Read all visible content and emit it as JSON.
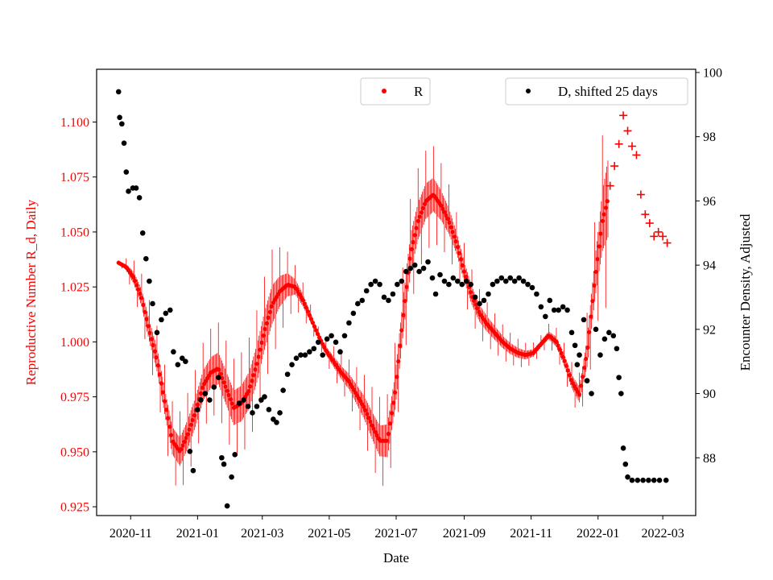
{
  "chart_data": {
    "type": "scatter",
    "xlabel": "Date",
    "ylabel_left": "Reproductive Number R_d, Daily",
    "ylabel_right": "Encounter Density, Adjusted",
    "x_ticks": [
      "2020-11",
      "2021-01",
      "2021-03",
      "2021-05",
      "2021-07",
      "2021-09",
      "2021-11",
      "2022-01",
      "2022-03"
    ],
    "xlim": [
      "2020-10-01",
      "2022-03-31"
    ],
    "y_left_ticks": [
      "0.925",
      "0.950",
      "0.975",
      "1.000",
      "1.025",
      "1.050",
      "1.075",
      "1.100"
    ],
    "ylim_left": [
      0.921,
      1.124
    ],
    "y_right_ticks": [
      "88",
      "90",
      "92",
      "94",
      "96",
      "98",
      "100"
    ],
    "ylim_right": [
      86.2,
      100.1
    ],
    "legend": [
      {
        "label": "R",
        "color": "#ff0000",
        "position": "top-center"
      },
      {
        "label": "D, shifted 25 days",
        "color": "#000000",
        "position": "top-right"
      }
    ],
    "colors": {
      "R": "#ff0000",
      "D": "#000000",
      "left_axis_text": "#ff0000"
    },
    "series": [
      {
        "name": "R",
        "marker": "dot",
        "smooth_points": [
          [
            "2020-10-21",
            1.036
          ],
          [
            "2020-10-28",
            1.034
          ],
          [
            "2020-11-04",
            1.029
          ],
          [
            "2020-11-11",
            1.02
          ],
          [
            "2020-11-18",
            1.005
          ],
          [
            "2020-11-25",
            0.992
          ],
          [
            "2020-12-02",
            0.973
          ],
          [
            "2020-12-09",
            0.955
          ],
          [
            "2020-12-16",
            0.95
          ],
          [
            "2020-12-23",
            0.958
          ],
          [
            "2020-12-30",
            0.968
          ],
          [
            "2021-01-06",
            0.98
          ],
          [
            "2021-01-13",
            0.986
          ],
          [
            "2021-01-20",
            0.988
          ],
          [
            "2021-01-27",
            0.979
          ],
          [
            "2021-02-03",
            0.97
          ],
          [
            "2021-02-10",
            0.972
          ],
          [
            "2021-02-17",
            0.978
          ],
          [
            "2021-02-24",
            0.99
          ],
          [
            "2021-03-03",
            1.005
          ],
          [
            "2021-03-10",
            1.017
          ],
          [
            "2021-03-17",
            1.023
          ],
          [
            "2021-03-24",
            1.026
          ],
          [
            "2021-03-31",
            1.025
          ],
          [
            "2021-04-07",
            1.019
          ],
          [
            "2021-04-14",
            1.011
          ],
          [
            "2021-04-21",
            1.003
          ],
          [
            "2021-04-28",
            0.996
          ],
          [
            "2021-05-05",
            0.991
          ],
          [
            "2021-05-12",
            0.986
          ],
          [
            "2021-05-19",
            0.982
          ],
          [
            "2021-05-26",
            0.976
          ],
          [
            "2021-06-02",
            0.97
          ],
          [
            "2021-06-09",
            0.962
          ],
          [
            "2021-06-16",
            0.955
          ],
          [
            "2021-06-23",
            0.955
          ],
          [
            "2021-06-30",
            0.977
          ],
          [
            "2021-07-07",
            1.01
          ],
          [
            "2021-07-14",
            1.04
          ],
          [
            "2021-07-21",
            1.055
          ],
          [
            "2021-07-28",
            1.064
          ],
          [
            "2021-08-04",
            1.067
          ],
          [
            "2021-08-11",
            1.062
          ],
          [
            "2021-08-18",
            1.055
          ],
          [
            "2021-08-25",
            1.045
          ],
          [
            "2021-09-01",
            1.032
          ],
          [
            "2021-09-08",
            1.021
          ],
          [
            "2021-09-15",
            1.013
          ],
          [
            "2021-09-22",
            1.008
          ],
          [
            "2021-09-29",
            1.004
          ],
          [
            "2021-10-06",
            1.0
          ],
          [
            "2021-10-13",
            0.997
          ],
          [
            "2021-10-20",
            0.995
          ],
          [
            "2021-10-27",
            0.994
          ],
          [
            "2021-11-03",
            0.995
          ],
          [
            "2021-11-10",
            0.999
          ],
          [
            "2021-11-17",
            1.003
          ],
          [
            "2021-11-24",
            1.0
          ],
          [
            "2021-12-01",
            0.992
          ],
          [
            "2021-12-08",
            0.982
          ],
          [
            "2021-12-15",
            0.976
          ],
          [
            "2021-12-22",
            0.995
          ],
          [
            "2021-12-29",
            1.028
          ],
          [
            "2022-01-05",
            1.055
          ],
          [
            "2022-01-10",
            1.065
          ]
        ],
        "cross_points": [
          [
            "2022-01-12",
            1.071
          ],
          [
            "2022-01-16",
            1.08
          ],
          [
            "2022-01-20",
            1.09
          ],
          [
            "2022-01-24",
            1.103
          ],
          [
            "2022-01-28",
            1.096
          ],
          [
            "2022-02-01",
            1.089
          ],
          [
            "2022-02-05",
            1.085
          ],
          [
            "2022-02-09",
            1.067
          ],
          [
            "2022-02-13",
            1.058
          ],
          [
            "2022-02-17",
            1.054
          ],
          [
            "2022-02-21",
            1.048
          ],
          [
            "2022-02-25",
            1.05
          ],
          [
            "2022-03-01",
            1.048
          ],
          [
            "2022-03-05",
            1.045
          ]
        ],
        "oscillation_amplitude": [
          [
            "2020-10-21",
            0.0
          ],
          [
            "2020-11-04",
            0.008
          ],
          [
            "2020-11-18",
            0.014
          ],
          [
            "2020-12-09",
            0.018
          ],
          [
            "2021-01-13",
            0.02
          ],
          [
            "2021-02-17",
            0.024
          ],
          [
            "2021-03-10",
            0.025
          ],
          [
            "2021-03-31",
            0.01
          ],
          [
            "2021-04-21",
            0.004
          ],
          [
            "2021-05-19",
            0.01
          ],
          [
            "2021-06-16",
            0.02
          ],
          [
            "2021-07-14",
            0.025
          ],
          [
            "2021-08-04",
            0.022
          ],
          [
            "2021-08-25",
            0.014
          ],
          [
            "2021-10-06",
            0.008
          ],
          [
            "2021-11-10",
            0.004
          ],
          [
            "2021-12-15",
            0.01
          ],
          [
            "2022-01-01",
            0.03
          ],
          [
            "2022-01-10",
            0.05
          ]
        ]
      },
      {
        "name": "D, shifted 25 days",
        "marker": "dot",
        "points": [
          [
            "2020-10-21",
            99.4
          ],
          [
            "2020-10-22",
            98.6
          ],
          [
            "2020-10-24",
            98.4
          ],
          [
            "2020-10-26",
            97.8
          ],
          [
            "2020-10-28",
            96.9
          ],
          [
            "2020-10-30",
            96.3
          ],
          [
            "2020-11-03",
            96.4
          ],
          [
            "2020-11-06",
            96.4
          ],
          [
            "2020-11-09",
            96.1
          ],
          [
            "2020-11-12",
            95.0
          ],
          [
            "2020-11-15",
            94.2
          ],
          [
            "2020-11-18",
            93.5
          ],
          [
            "2020-11-21",
            92.8
          ],
          [
            "2020-11-25",
            91.9
          ],
          [
            "2020-11-29",
            92.3
          ],
          [
            "2020-12-03",
            92.5
          ],
          [
            "2020-12-07",
            92.6
          ],
          [
            "2020-12-10",
            91.3
          ],
          [
            "2020-12-14",
            90.9
          ],
          [
            "2020-12-18",
            91.1
          ],
          [
            "2020-12-21",
            91.0
          ],
          [
            "2020-12-25",
            88.2
          ],
          [
            "2020-12-28",
            87.6
          ],
          [
            "2021-01-01",
            89.5
          ],
          [
            "2021-01-04",
            89.8
          ],
          [
            "2021-01-08",
            90.0
          ],
          [
            "2021-01-12",
            89.8
          ],
          [
            "2021-01-16",
            90.2
          ],
          [
            "2021-01-20",
            90.5
          ],
          [
            "2021-01-23",
            88.0
          ],
          [
            "2021-01-25",
            87.8
          ],
          [
            "2021-01-28",
            86.5
          ],
          [
            "2021-02-01",
            87.4
          ],
          [
            "2021-02-04",
            88.1
          ],
          [
            "2021-02-08",
            89.7
          ],
          [
            "2021-02-12",
            89.8
          ],
          [
            "2021-02-16",
            89.6
          ],
          [
            "2021-02-20",
            89.4
          ],
          [
            "2021-02-24",
            89.6
          ],
          [
            "2021-02-28",
            89.8
          ],
          [
            "2021-03-03",
            89.9
          ],
          [
            "2021-03-07",
            89.5
          ],
          [
            "2021-03-11",
            89.2
          ],
          [
            "2021-03-14",
            89.1
          ],
          [
            "2021-03-17",
            89.4
          ],
          [
            "2021-03-20",
            90.1
          ],
          [
            "2021-03-24",
            90.6
          ],
          [
            "2021-03-28",
            90.9
          ],
          [
            "2021-04-01",
            91.1
          ],
          [
            "2021-04-05",
            91.2
          ],
          [
            "2021-04-09",
            91.2
          ],
          [
            "2021-04-13",
            91.3
          ],
          [
            "2021-04-17",
            91.4
          ],
          [
            "2021-04-21",
            91.6
          ],
          [
            "2021-04-25",
            91.2
          ],
          [
            "2021-04-29",
            91.7
          ],
          [
            "2021-05-03",
            91.8
          ],
          [
            "2021-05-07",
            91.6
          ],
          [
            "2021-05-11",
            91.3
          ],
          [
            "2021-05-15",
            91.8
          ],
          [
            "2021-05-19",
            92.2
          ],
          [
            "2021-05-23",
            92.5
          ],
          [
            "2021-05-27",
            92.8
          ],
          [
            "2021-05-31",
            92.9
          ],
          [
            "2021-06-04",
            93.2
          ],
          [
            "2021-06-08",
            93.4
          ],
          [
            "2021-06-12",
            93.5
          ],
          [
            "2021-06-16",
            93.4
          ],
          [
            "2021-06-20",
            93.0
          ],
          [
            "2021-06-24",
            92.9
          ],
          [
            "2021-06-28",
            93.1
          ],
          [
            "2021-07-02",
            93.4
          ],
          [
            "2021-07-06",
            93.5
          ],
          [
            "2021-07-10",
            93.8
          ],
          [
            "2021-07-14",
            93.9
          ],
          [
            "2021-07-18",
            94.0
          ],
          [
            "2021-07-22",
            93.8
          ],
          [
            "2021-07-26",
            93.9
          ],
          [
            "2021-07-30",
            94.1
          ],
          [
            "2021-08-03",
            93.6
          ],
          [
            "2021-08-06",
            93.1
          ],
          [
            "2021-08-10",
            93.7
          ],
          [
            "2021-08-14",
            93.5
          ],
          [
            "2021-08-18",
            93.4
          ],
          [
            "2021-08-22",
            93.6
          ],
          [
            "2021-08-26",
            93.5
          ],
          [
            "2021-08-30",
            93.4
          ],
          [
            "2021-09-03",
            93.5
          ],
          [
            "2021-09-07",
            93.4
          ],
          [
            "2021-09-11",
            93.0
          ],
          [
            "2021-09-15",
            92.8
          ],
          [
            "2021-09-19",
            92.9
          ],
          [
            "2021-09-23",
            93.1
          ],
          [
            "2021-09-27",
            93.4
          ],
          [
            "2021-10-01",
            93.5
          ],
          [
            "2021-10-05",
            93.6
          ],
          [
            "2021-10-09",
            93.5
          ],
          [
            "2021-10-13",
            93.6
          ],
          [
            "2021-10-17",
            93.5
          ],
          [
            "2021-10-21",
            93.6
          ],
          [
            "2021-10-25",
            93.5
          ],
          [
            "2021-10-29",
            93.4
          ],
          [
            "2021-11-02",
            93.3
          ],
          [
            "2021-11-06",
            93.1
          ],
          [
            "2021-11-10",
            92.7
          ],
          [
            "2021-11-14",
            92.4
          ],
          [
            "2021-11-18",
            92.9
          ],
          [
            "2021-11-22",
            92.6
          ],
          [
            "2021-11-26",
            92.6
          ],
          [
            "2021-11-30",
            92.7
          ],
          [
            "2021-12-04",
            92.6
          ],
          [
            "2021-12-08",
            91.9
          ],
          [
            "2021-12-11",
            91.5
          ],
          [
            "2021-12-13",
            90.9
          ],
          [
            "2021-12-15",
            91.2
          ],
          [
            "2021-12-19",
            92.3
          ],
          [
            "2021-12-22",
            90.4
          ],
          [
            "2021-12-26",
            90.0
          ],
          [
            "2021-12-30",
            92.0
          ],
          [
            "2022-01-03",
            91.2
          ],
          [
            "2022-01-07",
            91.7
          ],
          [
            "2022-01-11",
            91.9
          ],
          [
            "2022-01-15",
            91.8
          ],
          [
            "2022-01-18",
            91.4
          ],
          [
            "2022-01-20",
            90.5
          ],
          [
            "2022-01-22",
            90.0
          ],
          [
            "2022-01-24",
            88.3
          ],
          [
            "2022-01-26",
            87.8
          ],
          [
            "2022-01-28",
            87.4
          ],
          [
            "2022-02-01",
            87.3
          ],
          [
            "2022-02-06",
            87.3
          ],
          [
            "2022-02-11",
            87.3
          ],
          [
            "2022-02-16",
            87.3
          ],
          [
            "2022-02-21",
            87.3
          ],
          [
            "2022-02-26",
            87.3
          ],
          [
            "2022-03-04",
            87.3
          ]
        ]
      }
    ]
  }
}
